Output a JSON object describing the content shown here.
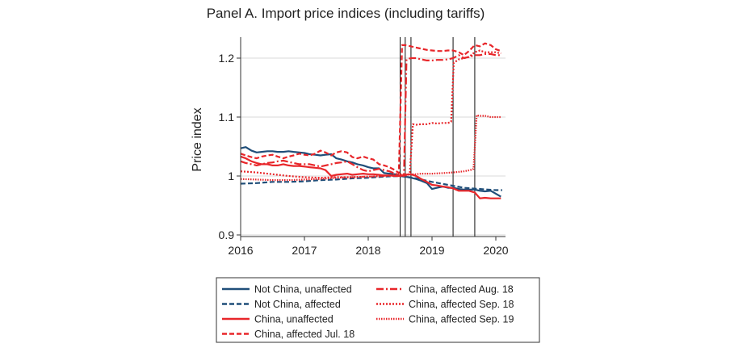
{
  "chart_data": {
    "type": "line",
    "title": "Panel A. Import price indices (including tariffs)",
    "xlabel": "",
    "ylabel": "Price index",
    "xlim": [
      2015.95,
      2020.25
    ],
    "ylim": [
      0.9,
      1.235
    ],
    "xticks": [
      2016,
      2017,
      2018,
      2019,
      2020
    ],
    "xtick_labels": [
      "2016",
      "2017",
      "2018",
      "2019",
      "2020"
    ],
    "yticks": [
      0.9,
      1.0,
      1.1,
      1.2
    ],
    "ytick_labels": [
      "0.9",
      "1",
      "1.1",
      "1.2"
    ],
    "grid": true,
    "vlines": [
      2018.5,
      2018.58,
      2018.67,
      2019.33,
      2019.67
    ],
    "colors": {
      "blue": "#1f4e79",
      "red": "#e8262a",
      "grid": "#d9d9d9"
    },
    "series": [
      {
        "name": "Not China, unaffected",
        "color": "#1f4e79",
        "dash": "solid",
        "x": [
          2016.0,
          2016.08,
          2016.17,
          2016.25,
          2016.33,
          2016.42,
          2016.5,
          2016.58,
          2016.67,
          2016.75,
          2016.83,
          2016.92,
          2017.0,
          2017.08,
          2017.17,
          2017.25,
          2017.33,
          2017.42,
          2017.5,
          2017.58,
          2017.67,
          2017.75,
          2017.83,
          2017.92,
          2018.0,
          2018.08,
          2018.17,
          2018.25,
          2018.33,
          2018.42,
          2018.5,
          2018.58,
          2018.67,
          2018.75,
          2018.83,
          2018.92,
          2019.0,
          2019.08,
          2019.17,
          2019.25,
          2019.33,
          2019.42,
          2019.5,
          2019.58,
          2019.67,
          2019.75,
          2019.83,
          2019.92,
          2020.0,
          2020.08
        ],
        "values": [
          1.047,
          1.049,
          1.043,
          1.04,
          1.041,
          1.042,
          1.042,
          1.041,
          1.041,
          1.042,
          1.041,
          1.04,
          1.039,
          1.037,
          1.036,
          1.035,
          1.036,
          1.037,
          1.03,
          1.028,
          1.025,
          1.023,
          1.02,
          1.018,
          1.015,
          1.013,
          1.013,
          1.005,
          1.004,
          1.003,
          1.0,
          0.999,
          0.997,
          0.995,
          0.992,
          0.988,
          0.978,
          0.98,
          0.982,
          0.98,
          0.98,
          0.978,
          0.977,
          0.977,
          0.977,
          0.975,
          0.974,
          0.975,
          0.97,
          0.965
        ]
      },
      {
        "name": "Not China, affected",
        "color": "#1f4e79",
        "dash": "dash",
        "x": [
          2016.0,
          2016.25,
          2016.5,
          2016.75,
          2017.0,
          2017.25,
          2017.5,
          2017.75,
          2018.0,
          2018.25,
          2018.5,
          2018.75,
          2019.0,
          2019.25,
          2019.5,
          2019.75,
          2020.0,
          2020.1
        ],
        "values": [
          0.987,
          0.988,
          0.99,
          0.99,
          0.991,
          0.993,
          0.994,
          0.996,
          0.997,
          0.999,
          1.0,
          0.996,
          0.99,
          0.985,
          0.98,
          0.978,
          0.976,
          0.976
        ]
      },
      {
        "name": "China, unaffected",
        "color": "#e8262a",
        "dash": "solid",
        "x": [
          2016.0,
          2016.08,
          2016.17,
          2016.25,
          2016.33,
          2016.42,
          2016.5,
          2016.58,
          2016.67,
          2016.75,
          2016.83,
          2016.92,
          2017.0,
          2017.08,
          2017.17,
          2017.25,
          2017.33,
          2017.42,
          2017.5,
          2017.58,
          2017.67,
          2017.75,
          2017.83,
          2017.92,
          2018.0,
          2018.08,
          2018.17,
          2018.25,
          2018.33,
          2018.42,
          2018.5,
          2018.58,
          2018.67,
          2018.75,
          2018.83,
          2018.92,
          2019.0,
          2019.08,
          2019.17,
          2019.25,
          2019.33,
          2019.42,
          2019.5,
          2019.58,
          2019.67,
          2019.75,
          2019.83,
          2019.92,
          2020.0,
          2020.08
        ],
        "values": [
          1.033,
          1.03,
          1.025,
          1.022,
          1.02,
          1.02,
          1.018,
          1.018,
          1.02,
          1.018,
          1.017,
          1.017,
          1.016,
          1.015,
          1.014,
          1.013,
          1.01,
          1.0,
          1.002,
          1.003,
          1.004,
          1.002,
          1.003,
          1.004,
          1.003,
          1.003,
          1.002,
          1.001,
          1.001,
          1.0,
          1.0,
          1.002,
          1.003,
          1.0,
          0.995,
          0.99,
          0.985,
          0.984,
          0.982,
          0.981,
          0.979,
          0.975,
          0.975,
          0.975,
          0.972,
          0.962,
          0.963,
          0.962,
          0.962,
          0.962
        ]
      },
      {
        "name": "China, affected Jul. 18",
        "color": "#e8262a",
        "dash": "dash",
        "x": [
          2016.0,
          2016.08,
          2016.17,
          2016.25,
          2016.33,
          2016.42,
          2016.5,
          2016.58,
          2016.67,
          2016.75,
          2016.83,
          2016.92,
          2017.0,
          2017.08,
          2017.17,
          2017.25,
          2017.33,
          2017.42,
          2017.5,
          2017.58,
          2017.67,
          2017.75,
          2017.83,
          2017.92,
          2018.0,
          2018.08,
          2018.17,
          2018.25,
          2018.33,
          2018.42,
          2018.48,
          2018.53,
          2018.58,
          2018.67,
          2018.75,
          2018.83,
          2018.92,
          2019.0,
          2019.08,
          2019.17,
          2019.25,
          2019.33,
          2019.42,
          2019.5,
          2019.58,
          2019.67,
          2019.75,
          2019.83,
          2019.92,
          2020.0,
          2020.08
        ],
        "values": [
          1.038,
          1.035,
          1.032,
          1.03,
          1.033,
          1.035,
          1.036,
          1.033,
          1.03,
          1.033,
          1.035,
          1.038,
          1.036,
          1.035,
          1.038,
          1.043,
          1.04,
          1.035,
          1.04,
          1.042,
          1.04,
          1.032,
          1.03,
          1.033,
          1.03,
          1.028,
          1.02,
          1.018,
          1.015,
          1.01,
          1.005,
          1.222,
          1.222,
          1.22,
          1.218,
          1.216,
          1.214,
          1.213,
          1.212,
          1.212,
          1.213,
          1.213,
          1.21,
          1.205,
          1.212,
          1.222,
          1.22,
          1.225,
          1.222,
          1.215,
          1.212
        ]
      },
      {
        "name": "China, affected Aug. 18",
        "color": "#e8262a",
        "dash": "dashdot",
        "x": [
          2016.0,
          2016.08,
          2016.17,
          2016.25,
          2016.33,
          2016.42,
          2016.5,
          2016.58,
          2016.67,
          2016.75,
          2016.83,
          2016.92,
          2017.0,
          2017.08,
          2017.17,
          2017.25,
          2017.33,
          2017.42,
          2017.5,
          2017.58,
          2017.67,
          2017.75,
          2017.83,
          2017.92,
          2018.0,
          2018.08,
          2018.17,
          2018.25,
          2018.33,
          2018.42,
          2018.5,
          2018.56,
          2018.6,
          2018.67,
          2018.75,
          2018.83,
          2018.92,
          2019.0,
          2019.08,
          2019.17,
          2019.25,
          2019.33,
          2019.42,
          2019.5,
          2019.58,
          2019.67,
          2019.75,
          2019.83,
          2019.92,
          2020.0,
          2020.08
        ],
        "values": [
          1.025,
          1.022,
          1.02,
          1.018,
          1.02,
          1.022,
          1.023,
          1.025,
          1.026,
          1.024,
          1.022,
          1.02,
          1.02,
          1.02,
          1.018,
          1.016,
          1.018,
          1.02,
          1.022,
          1.023,
          1.025,
          1.02,
          1.015,
          1.01,
          1.008,
          1.01,
          1.012,
          1.01,
          1.008,
          1.004,
          1.002,
          1.0,
          1.198,
          1.2,
          1.2,
          1.198,
          1.196,
          1.196,
          1.197,
          1.197,
          1.198,
          1.2,
          1.205,
          1.2,
          1.202,
          1.205,
          1.205,
          1.207,
          1.207,
          1.205,
          1.205
        ]
      },
      {
        "name": "China, affected Sep. 18",
        "color": "#e8262a",
        "dash": "dot",
        "x": [
          2016.0,
          2016.25,
          2016.5,
          2016.75,
          2017.0,
          2017.25,
          2017.5,
          2017.75,
          2018.0,
          2018.25,
          2018.5,
          2018.6,
          2018.65,
          2018.7,
          2018.75,
          2018.83,
          2018.92,
          2019.0,
          2019.08,
          2019.17,
          2019.25,
          2019.3,
          2019.34,
          2019.42,
          2019.5,
          2019.58,
          2019.67,
          2019.75,
          2019.83,
          2019.92,
          2020.0,
          2020.08
        ],
        "values": [
          1.008,
          1.006,
          1.003,
          1.0,
          0.998,
          0.997,
          0.998,
          0.998,
          0.999,
          1.0,
          1.001,
          1.001,
          1.003,
          1.088,
          1.087,
          1.088,
          1.088,
          1.09,
          1.089,
          1.09,
          1.09,
          1.092,
          1.192,
          1.198,
          1.2,
          1.202,
          1.21,
          1.213,
          1.21,
          1.21,
          1.21,
          1.208
        ]
      },
      {
        "name": "China, affected Sep. 19",
        "color": "#e8262a",
        "dash": "dotdense",
        "x": [
          2016.0,
          2016.25,
          2016.5,
          2016.75,
          2017.0,
          2017.25,
          2017.5,
          2017.75,
          2018.0,
          2018.25,
          2018.5,
          2018.67,
          2018.75,
          2018.83,
          2018.92,
          2019.0,
          2019.17,
          2019.33,
          2019.5,
          2019.6,
          2019.65,
          2019.7,
          2019.75,
          2019.83,
          2019.92,
          2020.0,
          2020.08
        ],
        "values": [
          0.995,
          0.994,
          0.993,
          0.993,
          0.994,
          0.995,
          0.997,
          0.998,
          0.999,
          1.0,
          1.003,
          1.003,
          1.003,
          1.004,
          1.004,
          1.004,
          1.005,
          1.006,
          1.008,
          1.01,
          1.012,
          1.103,
          1.102,
          1.102,
          1.1,
          1.1,
          1.1
        ]
      }
    ],
    "legend": {
      "position": "bottom",
      "left_column": [
        "Not China, unaffected",
        "Not China, affected",
        "China, unaffected",
        "China, affected Jul. 18"
      ],
      "right_column": [
        "China, affected Aug. 18",
        "China, affected Sep. 18",
        "China, affected Sep. 19"
      ]
    }
  }
}
